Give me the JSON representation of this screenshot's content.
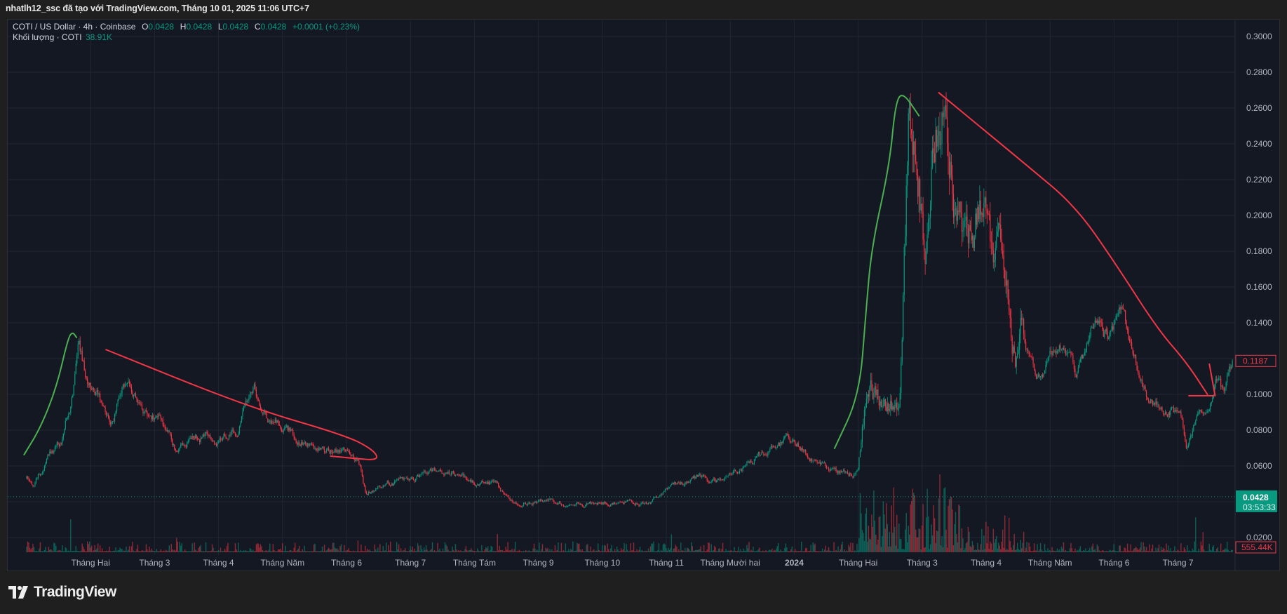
{
  "header": {
    "caption": "nhatlh12_ssc đã tạo với TradingView.com, Tháng 10 01, 2025 11:06 UTC+7"
  },
  "legend": {
    "symbol": "COTI / US Dollar · 4h · Coinbase",
    "o_label": "O",
    "o_value": "0.0428",
    "h_label": "H",
    "h_value": "0.0428",
    "l_label": "L",
    "l_value": "0.0428",
    "c_label": "C",
    "c_value": "0.0428",
    "change": "+0.0001 (+0.23%)",
    "volume_label": "Khối lượng · COTI",
    "volume_value": "38.91K"
  },
  "colors": {
    "up": "#089981",
    "down": "#f23645",
    "background": "#141823",
    "grid": "#222633",
    "axis_text": "#b2b5be",
    "drawing_green": "#4caf50",
    "drawing_red": "#f23645"
  },
  "chart_data": {
    "type": "candlestick",
    "title": "COTI / US Dollar · 4h · Coinbase",
    "x_unit": "months since 2023-01-01",
    "ylim": [
      0.0,
      0.3
    ],
    "y_ticks": [
      "0.3000",
      "0.2800",
      "0.2600",
      "0.2400",
      "0.2200",
      "0.2000",
      "0.1800",
      "0.1600",
      "0.1400",
      "0.1200",
      "0.1000",
      "0.0800",
      "0.0600",
      "0.0400",
      "0.0200"
    ],
    "y_tick_values": [
      0.3,
      0.28,
      0.26,
      0.24,
      0.22,
      0.2,
      0.18,
      0.16,
      0.14,
      0.12,
      0.1,
      0.08,
      0.06,
      0.04,
      0.02
    ],
    "hidden_y_ticks": [
      "0.1200",
      "0.0400"
    ],
    "x_ticks": [
      {
        "m": 1,
        "label": "Tháng Hai"
      },
      {
        "m": 2,
        "label": "Tháng 3"
      },
      {
        "m": 3,
        "label": "Tháng 4"
      },
      {
        "m": 4,
        "label": "Tháng Năm"
      },
      {
        "m": 5,
        "label": "Tháng 6"
      },
      {
        "m": 6,
        "label": "Tháng 7"
      },
      {
        "m": 7,
        "label": "Tháng Tám"
      },
      {
        "m": 8,
        "label": "Tháng 9"
      },
      {
        "m": 9,
        "label": "Tháng 10"
      },
      {
        "m": 10,
        "label": "Tháng 11"
      },
      {
        "m": 11,
        "label": "Tháng Mười hai"
      },
      {
        "m": 12,
        "label": "2024"
      },
      {
        "m": 13,
        "label": "Tháng Hai"
      },
      {
        "m": 14,
        "label": "Tháng 3"
      },
      {
        "m": 15,
        "label": "Tháng 4"
      },
      {
        "m": 16,
        "label": "Tháng Năm"
      },
      {
        "m": 17,
        "label": "Tháng 6"
      },
      {
        "m": 18,
        "label": "Tháng 7"
      }
    ],
    "price_path": [
      [
        0.0,
        0.053
      ],
      [
        0.1,
        0.05
      ],
      [
        0.35,
        0.065
      ],
      [
        0.55,
        0.075
      ],
      [
        0.72,
        0.1
      ],
      [
        0.82,
        0.128
      ],
      [
        0.95,
        0.105
      ],
      [
        1.1,
        0.1
      ],
      [
        1.3,
        0.085
      ],
      [
        1.55,
        0.106
      ],
      [
        1.8,
        0.092
      ],
      [
        2.1,
        0.085
      ],
      [
        2.35,
        0.066
      ],
      [
        2.6,
        0.078
      ],
      [
        3.0,
        0.075
      ],
      [
        3.3,
        0.08
      ],
      [
        3.56,
        0.106
      ],
      [
        3.7,
        0.09
      ],
      [
        4.0,
        0.082
      ],
      [
        4.5,
        0.07
      ],
      [
        5.0,
        0.068
      ],
      [
        5.2,
        0.062
      ],
      [
        5.3,
        0.045
      ],
      [
        5.6,
        0.05
      ],
      [
        6.0,
        0.052
      ],
      [
        6.45,
        0.057
      ],
      [
        6.9,
        0.052
      ],
      [
        7.3,
        0.05
      ],
      [
        7.6,
        0.04
      ],
      [
        8.5,
        0.039
      ],
      [
        9.3,
        0.04
      ],
      [
        9.7,
        0.038
      ],
      [
        10.0,
        0.047
      ],
      [
        10.5,
        0.055
      ],
      [
        10.9,
        0.05
      ],
      [
        11.2,
        0.06
      ],
      [
        11.6,
        0.068
      ],
      [
        12.0,
        0.076
      ],
      [
        12.2,
        0.066
      ],
      [
        12.6,
        0.057
      ],
      [
        13.0,
        0.056
      ],
      [
        13.1,
        0.09
      ],
      [
        13.2,
        0.102
      ],
      [
        13.45,
        0.092
      ],
      [
        13.65,
        0.1
      ],
      [
        13.72,
        0.18
      ],
      [
        13.8,
        0.26
      ],
      [
        13.95,
        0.22
      ],
      [
        14.05,
        0.17
      ],
      [
        14.15,
        0.23
      ],
      [
        14.3,
        0.262
      ],
      [
        14.5,
        0.215
      ],
      [
        14.7,
        0.175
      ],
      [
        14.9,
        0.205
      ],
      [
        15.1,
        0.18
      ],
      [
        15.3,
        0.165
      ],
      [
        15.45,
        0.12
      ],
      [
        15.55,
        0.135
      ],
      [
        15.8,
        0.112
      ],
      [
        16.1,
        0.125
      ],
      [
        16.4,
        0.11
      ],
      [
        16.7,
        0.14
      ],
      [
        16.9,
        0.13
      ],
      [
        17.1,
        0.142
      ],
      [
        17.3,
        0.125
      ],
      [
        17.5,
        0.1
      ],
      [
        17.8,
        0.092
      ],
      [
        18.05,
        0.09
      ],
      [
        18.15,
        0.072
      ],
      [
        18.3,
        0.085
      ],
      [
        18.5,
        0.095
      ],
      [
        18.6,
        0.11
      ],
      [
        18.72,
        0.1
      ],
      [
        18.85,
        0.1187
      ]
    ],
    "last_price": "0.1187",
    "current_price": "0.0428",
    "current_price_value": 0.0428,
    "countdown": "03:53:33",
    "volume_last": "555.44K",
    "volume_peak_region_months": [
      13.0,
      14.6
    ],
    "drawings": [
      {
        "color": "green",
        "points": [
          [
            -0.04,
            0.0663
          ],
          [
            0.22,
            0.0816
          ],
          [
            0.47,
            0.1043
          ],
          [
            0.65,
            0.1318
          ],
          [
            0.72,
            0.1349
          ],
          [
            0.78,
            0.1318
          ]
        ]
      },
      {
        "color": "red",
        "points": [
          [
            1.24,
            0.125
          ],
          [
            3.46,
            0.093
          ],
          [
            5.0,
            0.0769
          ],
          [
            5.42,
            0.069
          ],
          [
            5.51,
            0.0631
          ],
          [
            5.1,
            0.0643
          ],
          [
            4.75,
            0.0655
          ]
        ]
      },
      {
        "color": "green",
        "points": [
          [
            12.63,
            0.0698
          ],
          [
            13.02,
            0.0996
          ],
          [
            13.12,
            0.1455
          ],
          [
            13.21,
            0.1824
          ],
          [
            13.49,
            0.2282
          ],
          [
            13.58,
            0.262
          ],
          [
            13.69,
            0.2694
          ],
          [
            13.95,
            0.2557
          ]
        ]
      },
      {
        "color": "red",
        "points": [
          [
            14.26,
            0.2686
          ],
          [
            15.63,
            0.2282
          ],
          [
            16.4,
            0.2051
          ],
          [
            17.02,
            0.1733
          ],
          [
            17.68,
            0.1365
          ],
          [
            18.13,
            0.118
          ],
          [
            18.46,
            0.1
          ]
        ]
      },
      {
        "color": "red",
        "points": [
          [
            18.17,
            0.0992
          ],
          [
            18.56,
            0.0992
          ]
        ]
      },
      {
        "color": "red",
        "points": [
          [
            18.49,
            0.1169
          ],
          [
            18.58,
            0.0992
          ]
        ]
      }
    ]
  },
  "branding": {
    "logo_text": "TradingView"
  }
}
